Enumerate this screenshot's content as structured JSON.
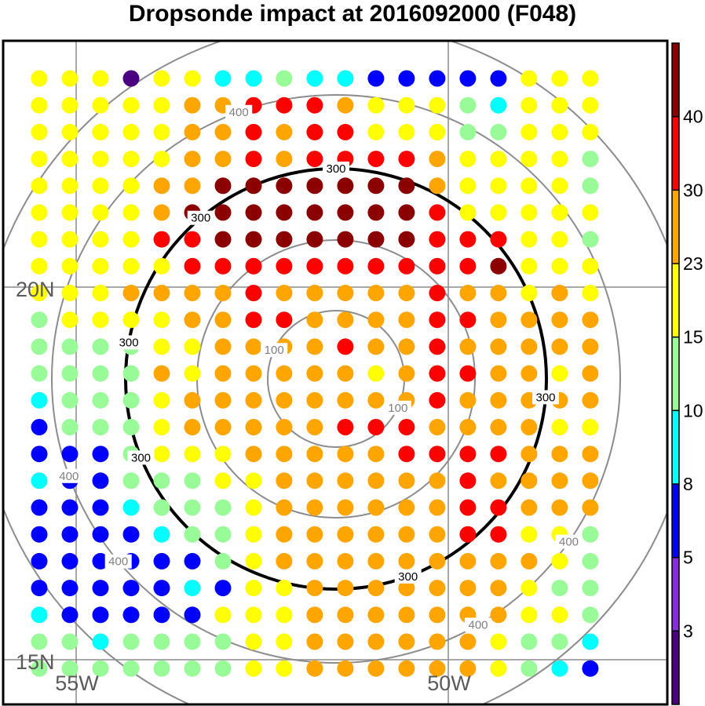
{
  "chart_data": {
    "type": "scatter",
    "title": "Dropsonde impact at 2016092000 (F048)",
    "map": {
      "lat_labels": [
        "20N",
        "15N"
      ],
      "lon_labels": [
        "55W",
        "50W"
      ]
    },
    "contour_levels": [
      {
        "value": 100,
        "label": "100"
      },
      {
        "value": 200,
        "label": ""
      },
      {
        "value": 300,
        "label": "300",
        "highlight": true
      },
      {
        "value": 400,
        "label": "400"
      },
      {
        "value": 500,
        "label": ""
      }
    ],
    "colorbar": {
      "tick_labels": [
        "3",
        "5",
        "8",
        "10",
        "15",
        "23",
        "30",
        "40"
      ],
      "colors": [
        "#4b0082",
        "#8a2be2",
        "#0000ff",
        "#00ffff",
        "#98fb98",
        "#ffff00",
        "#ffa500",
        "#ff0000",
        "#8b0000"
      ]
    },
    "grid_classes": [
      "5550553343322222555",
      "5555566777655543555",
      "5555566767755544555",
      "5555566767777655554",
      "5555668888888655554",
      "5555688888888755555",
      "5555778888888777554",
      "5555577777777778555",
      "5556666766666766565",
      "4555566776666776666",
      "4444556666766766666",
      "4444656666656776656",
      "3444566666666766666",
      "2444566666777666655",
      "2224555666667777666",
      "3224445566666676666",
      "2223444566666677666",
      "2222344566666677554",
      "2222224566666666654",
      "2222232556666666544",
      "3222225556666666554",
      "4434444556666665443",
      "4444444556666665432"
    ]
  }
}
